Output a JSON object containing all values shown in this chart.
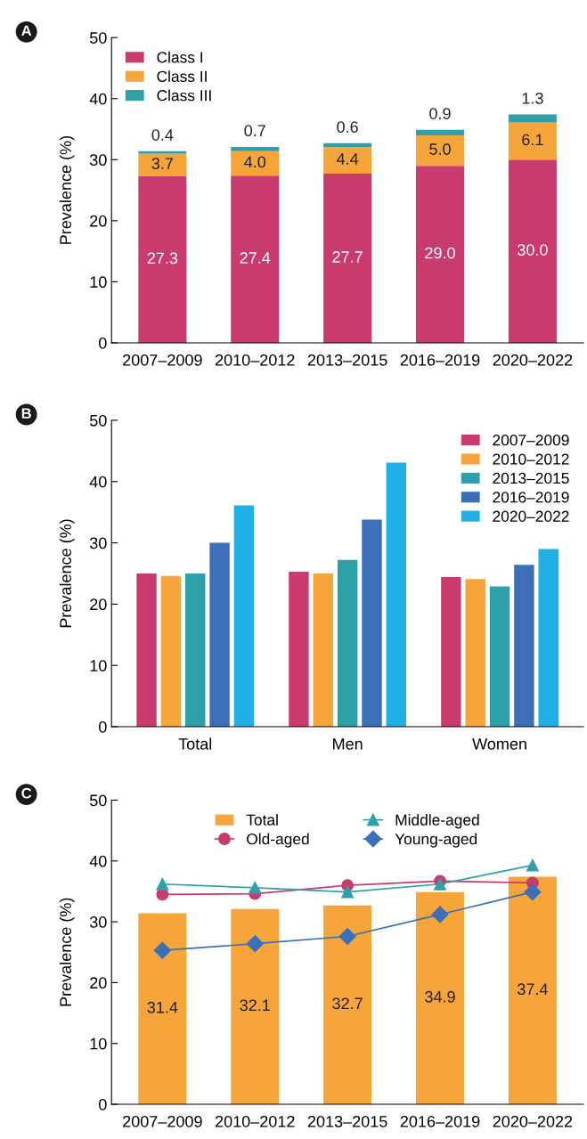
{
  "chart_data": [
    {
      "type": "bar",
      "title": "A",
      "stacked": true,
      "ylabel": "Prevalence (%)",
      "ylim": [
        0,
        50
      ],
      "yticks": [
        0,
        10,
        20,
        30,
        40,
        50
      ],
      "legend": "top left",
      "categories": [
        "2007–2009",
        "2010–2012",
        "2013–2015",
        "2016–2019",
        "2020–2022"
      ],
      "series": [
        {
          "name": "Class I",
          "color": "#c93a6e",
          "values": [
            27.3,
            27.4,
            27.7,
            29.0,
            30.0
          ],
          "value_labels": [
            "27.3",
            "27.4",
            "27.7",
            "29.0",
            "30.0"
          ]
        },
        {
          "name": "Class II",
          "color": "#f5a53a",
          "values": [
            3.7,
            4.0,
            4.4,
            5.0,
            6.1
          ],
          "value_labels": [
            "3.7",
            "4.0",
            "4.4",
            "5.0",
            "6.1"
          ]
        },
        {
          "name": "Class III",
          "color": "#2ea0a8",
          "values": [
            0.4,
            0.7,
            0.6,
            0.9,
            1.3
          ],
          "value_labels": [
            "0.4",
            "0.7",
            "0.6",
            "0.9",
            "1.3"
          ]
        }
      ]
    },
    {
      "type": "bar",
      "title": "B",
      "ylabel": "Prevalence (%)",
      "ylim": [
        0,
        50
      ],
      "yticks": [
        0,
        10,
        20,
        30,
        40,
        50
      ],
      "legend": "top right",
      "categories": [
        "Total",
        "Men",
        "Women"
      ],
      "series": [
        {
          "name": "2007–2009",
          "color": "#c93a6e",
          "values": [
            25.0,
            25.3,
            24.4
          ]
        },
        {
          "name": "2010–2012",
          "color": "#f5a53a",
          "values": [
            24.6,
            25.0,
            24.1
          ]
        },
        {
          "name": "2013–2015",
          "color": "#2ea0a8",
          "values": [
            25.0,
            27.2,
            22.9
          ]
        },
        {
          "name": "2016–2019",
          "color": "#3b6fb8",
          "values": [
            30.0,
            33.8,
            26.4
          ]
        },
        {
          "name": "2020–2022",
          "color": "#20b0e5",
          "values": [
            36.1,
            43.1,
            29.0
          ]
        }
      ]
    },
    {
      "type": "bar",
      "title": "C",
      "ylabel": "Prevalence (%)",
      "ylim": [
        0,
        50
      ],
      "yticks": [
        0,
        10,
        20,
        30,
        40,
        50
      ],
      "legend": "top",
      "categories": [
        "2007–2009",
        "2010–2012",
        "2013–2015",
        "2016–2019",
        "2020–2022"
      ],
      "series": [
        {
          "name": "Total",
          "color": "#f5a53a",
          "values": [
            31.4,
            32.1,
            32.7,
            34.9,
            37.4
          ],
          "value_labels": [
            "31.4",
            "32.1",
            "32.7",
            "34.9",
            "37.4"
          ]
        },
        {
          "name": "Old-aged",
          "type": "line",
          "marker": "circle",
          "color": "#c93a6e",
          "values": [
            34.5,
            34.6,
            36.0,
            36.7,
            36.4
          ]
        },
        {
          "name": "Middle-aged",
          "type": "line",
          "marker": "triangle",
          "color": "#2ea0a8",
          "values": [
            36.2,
            35.6,
            34.9,
            36.2,
            39.3
          ]
        },
        {
          "name": "Young-aged",
          "type": "line",
          "marker": "diamond",
          "color": "#3b6fb8",
          "values": [
            25.3,
            26.4,
            27.6,
            31.2,
            34.9
          ]
        }
      ]
    }
  ]
}
